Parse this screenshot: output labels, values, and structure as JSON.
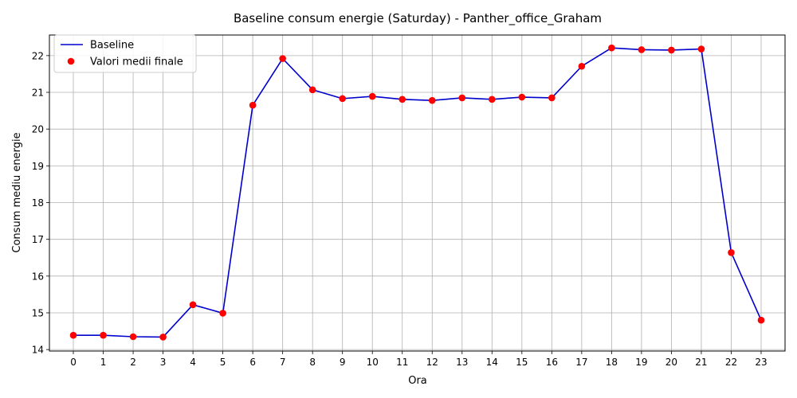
{
  "chart_data": {
    "type": "line",
    "title": "Baseline consum energie (Saturday) - Panther_office_Graham",
    "xlabel": "Ora",
    "ylabel": "Consum mediu energie",
    "x": [
      0,
      1,
      2,
      3,
      4,
      5,
      6,
      7,
      8,
      9,
      10,
      11,
      12,
      13,
      14,
      15,
      16,
      17,
      18,
      19,
      20,
      21,
      22,
      23
    ],
    "x_tick_labels": [
      "0",
      "1",
      "2",
      "3",
      "4",
      "5",
      "6",
      "7",
      "8",
      "9",
      "10",
      "11",
      "12",
      "13",
      "14",
      "15",
      "16",
      "17",
      "18",
      "19",
      "20",
      "21",
      "22",
      "23"
    ],
    "ylim": [
      13.96,
      22.56
    ],
    "y_ticks": [
      14,
      15,
      16,
      17,
      18,
      19,
      20,
      21,
      22
    ],
    "y_tick_labels": [
      "14",
      "15",
      "16",
      "17",
      "18",
      "19",
      "20",
      "21",
      "22"
    ],
    "grid": true,
    "legend_position": "top-left",
    "series": [
      {
        "name": "Baseline",
        "kind": "line",
        "color": "#0000cd",
        "values": [
          14.39,
          14.39,
          14.35,
          14.34,
          15.22,
          14.99,
          20.65,
          21.92,
          21.07,
          20.83,
          20.89,
          20.81,
          20.78,
          20.85,
          20.81,
          20.87,
          20.85,
          21.71,
          22.21,
          22.16,
          22.15,
          22.18,
          16.64,
          14.8
        ]
      },
      {
        "name": "Valori medii finale",
        "kind": "scatter",
        "color": "#ff0000",
        "values": [
          14.39,
          14.39,
          14.35,
          14.34,
          15.22,
          14.99,
          20.65,
          21.92,
          21.07,
          20.83,
          20.89,
          20.81,
          20.78,
          20.85,
          20.81,
          20.87,
          20.85,
          21.71,
          22.21,
          22.16,
          22.15,
          22.18,
          16.64,
          14.8
        ]
      }
    ]
  }
}
